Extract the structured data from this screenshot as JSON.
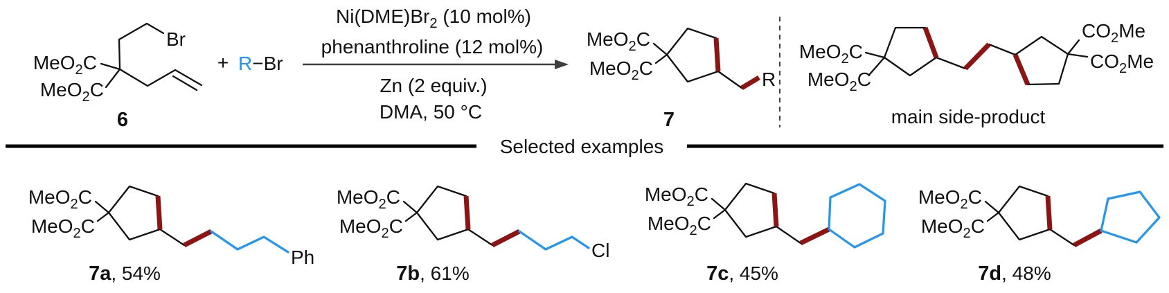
{
  "labels": {
    "meo2c": "MeO2C",
    "co2me": "CO2Me",
    "br": "Br"
  },
  "scheme": {
    "reactant_id": "6",
    "plus": "+",
    "r": "R",
    "bond_dash": "−",
    "conditions": {
      "above": [
        "Ni(DME)Br2 (10 mol%)",
        "phenanthroline (12 mol%)"
      ],
      "below": [
        "Zn (2 equiv.)",
        "DMA, 50 °C"
      ]
    },
    "product_id": "7",
    "side_product_caption": "main side-product"
  },
  "divider": {
    "label": "Selected examples"
  },
  "examples": [
    {
      "id": "7a",
      "suffix": ", 54%",
      "r_label": "Ph"
    },
    {
      "id": "7b",
      "suffix": ", 61%",
      "r_label": "Cl"
    },
    {
      "id": "7c",
      "suffix": ", 45%"
    },
    {
      "id": "7d",
      "suffix": ", 48%"
    }
  ],
  "colors": {
    "r_group": "#2196f3",
    "new_bond": "#8e1313"
  }
}
